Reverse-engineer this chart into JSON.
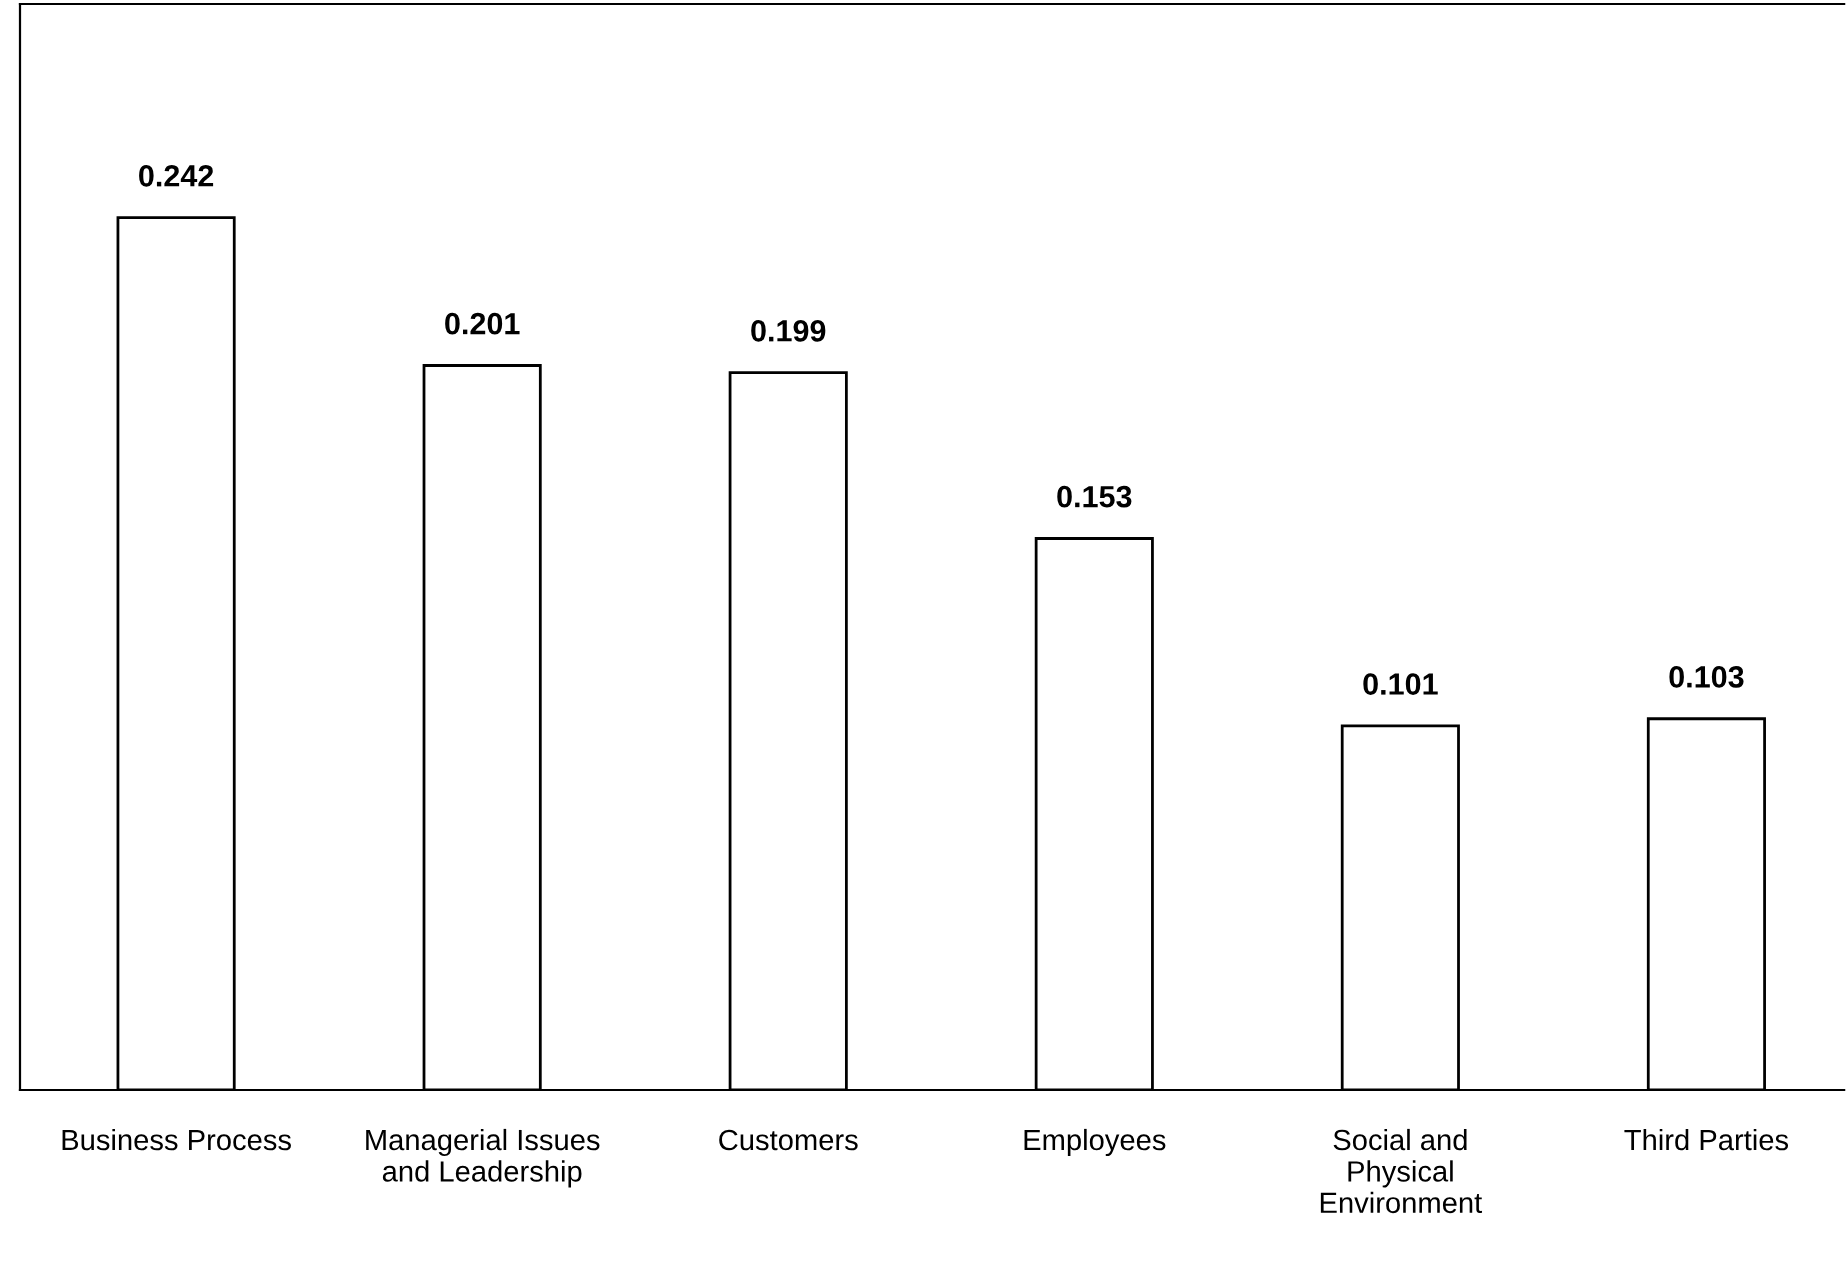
{
  "chart_data": {
    "type": "bar",
    "categories": [
      "Business Process",
      "Managerial Issues\nand Leadership",
      "Customers",
      "Employees",
      "Social and\nPhysical\nEnvironment",
      "Third Parties"
    ],
    "values": [
      0.242,
      0.201,
      0.199,
      0.153,
      0.101,
      0.103
    ],
    "color": "#ffffff",
    "data_labels": true,
    "grid": false,
    "legend": false
  }
}
